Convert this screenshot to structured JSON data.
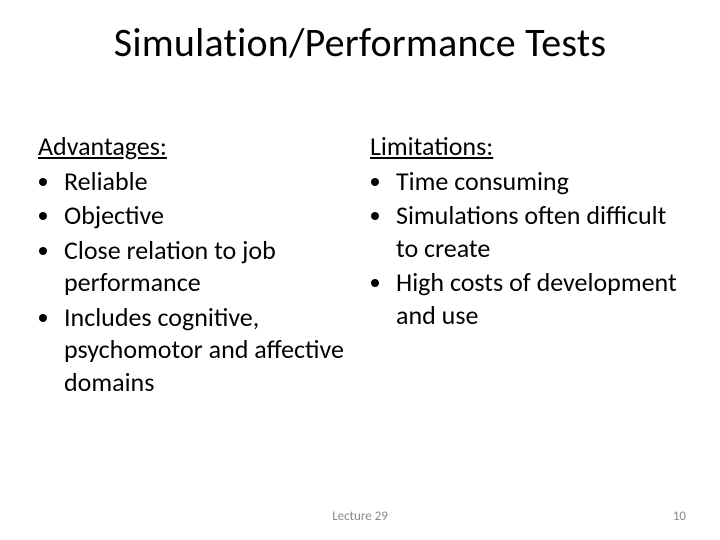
{
  "title": "Simulation/Performance Tests",
  "left": {
    "heading": "Advantages:",
    "items": [
      "Reliable",
      "Objective",
      "Close relation to job performance",
      "Includes cognitive, psychomotor and affective domains"
    ]
  },
  "right": {
    "heading": "Limitations:",
    "items": [
      "Time consuming",
      "Simulations often difficult to create",
      "High costs of development and use"
    ]
  },
  "footer": {
    "center": "Lecture 29",
    "page": "10"
  },
  "style": {
    "title_fontsize": 40,
    "body_fontsize": 26,
    "footer_fontsize": 13,
    "text_color": "#000000",
    "footer_color": "#8a8a8a",
    "background_color": "#ffffff"
  }
}
